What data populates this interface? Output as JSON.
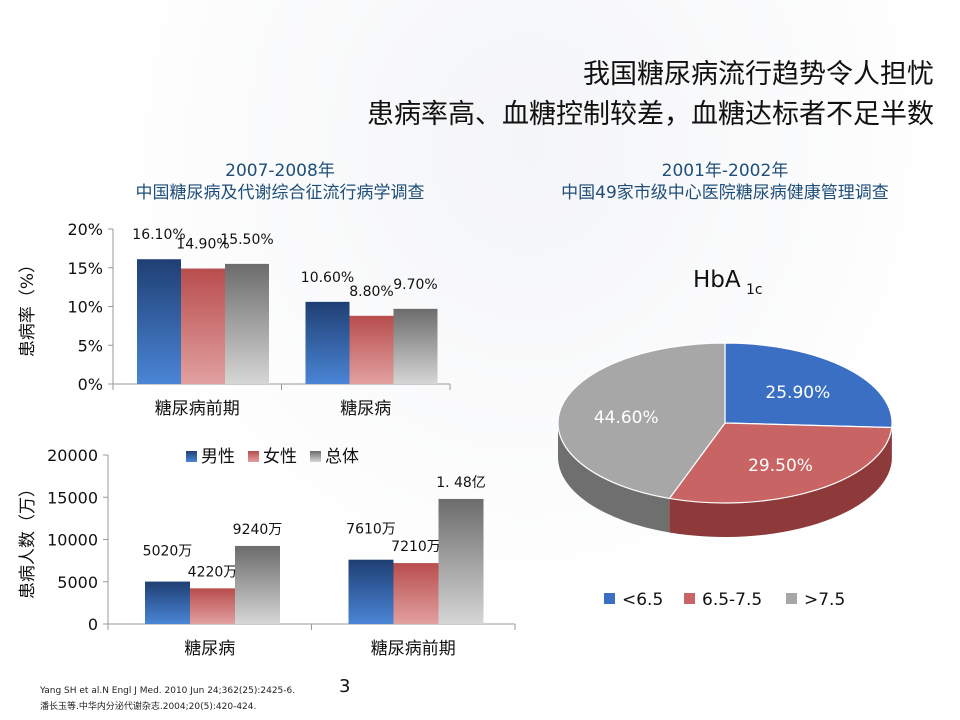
{
  "title_line1": "我国糖尿病流行趋势令人担忧",
  "title_line2": "患病率高、血糖控制较差，血糖达标者不足半数",
  "left_subtitle": [
    "2007-2008年",
    "中国糖尿病及代谢综合征流行病学调查"
  ],
  "right_subtitle": [
    "2001年-2002年",
    "中国49家市级中心医院糖尿病健康管理调查"
  ],
  "colors": {
    "male": "#3a6fc4",
    "female": "#c85f5f",
    "total": "#8c8c8c",
    "pie_lt65": "#3a6fc4",
    "pie_65_75": "#c86464",
    "pie_gt75": "#a7a7a7"
  },
  "chart_data": [
    {
      "type": "bar",
      "ylabel": "患病率（%）",
      "categories": [
        "糖尿病前期",
        "糖尿病"
      ],
      "ylim": [
        0,
        20
      ],
      "yticks": [
        "0%",
        "5%",
        "10%",
        "15%",
        "20%"
      ],
      "series": [
        {
          "name": "男性",
          "values": [
            16.1,
            10.6
          ],
          "labels": [
            "16.10%",
            "10.60%"
          ]
        },
        {
          "name": "女性",
          "values": [
            14.9,
            8.8
          ],
          "labels": [
            "14.90%",
            "8.80%"
          ]
        },
        {
          "name": "总体",
          "values": [
            15.5,
            9.7
          ],
          "labels": [
            "15.50%",
            "9.70%"
          ]
        }
      ]
    },
    {
      "type": "bar",
      "ylabel": "患病人数（万）",
      "categories": [
        "糖尿病",
        "糖尿病前期"
      ],
      "ylim": [
        0,
        20000
      ],
      "yticks": [
        "0",
        "5000",
        "10000",
        "15000",
        "20000"
      ],
      "legend": [
        "男性",
        "女性",
        "总体"
      ],
      "series": [
        {
          "name": "男性",
          "values": [
            5020,
            7610
          ],
          "labels": [
            "5020万",
            "7610万"
          ]
        },
        {
          "name": "女性",
          "values": [
            4220,
            7210
          ],
          "labels": [
            "4220万",
            "7210万"
          ]
        },
        {
          "name": "总体",
          "values": [
            9240,
            14800
          ],
          "labels": [
            "9240万",
            "1. 48亿"
          ]
        }
      ]
    },
    {
      "type": "pie",
      "title": "HbA",
      "title_subscript": "1c",
      "categories": [
        "<6.5",
        "6.5-7.5",
        ">7.5"
      ],
      "values": [
        25.9,
        29.5,
        44.6
      ],
      "labels": [
        "25.90%",
        "29.50%",
        "44.60%"
      ]
    }
  ],
  "citations": [
    "Yang SH et al.N Engl J Med. 2010 Jun 24;362(25):2425-6.",
    "潘长玉等.中华内分泌代谢杂志.2004;20(5):420-424."
  ],
  "page_number": "3"
}
